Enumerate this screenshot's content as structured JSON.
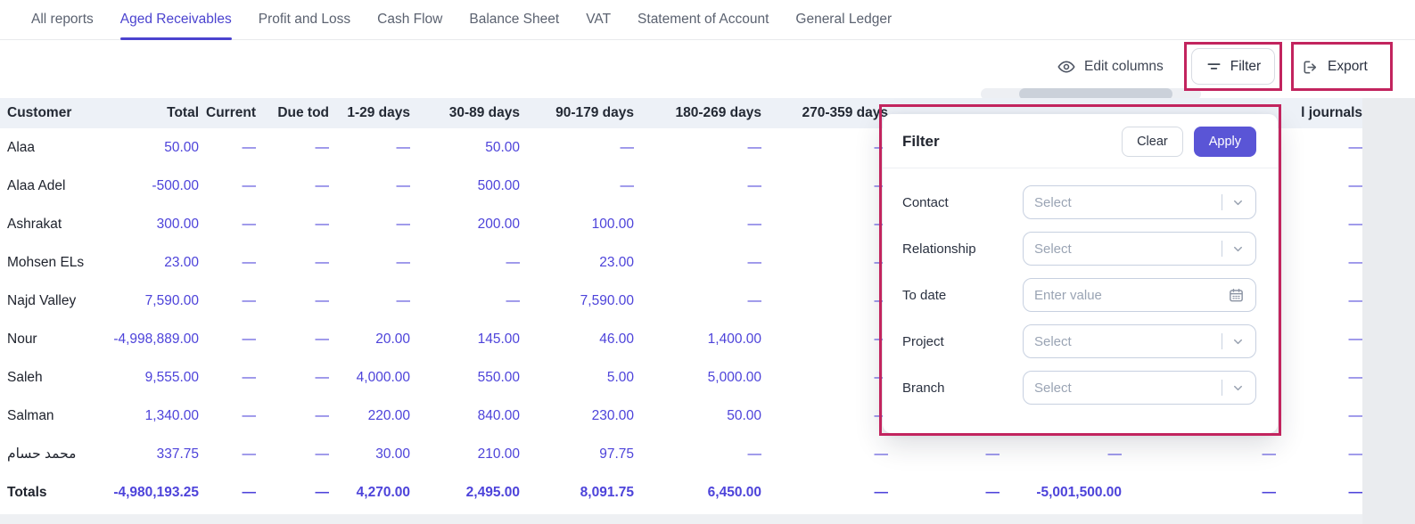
{
  "colors": {
    "accent": "#4b43cf",
    "number_link": "#4d43da",
    "annotation": "#c2245e",
    "apply_button": "#5a55d6",
    "table_header_bg": "#edf1f7"
  },
  "tabs": [
    {
      "label": "All reports",
      "active": false
    },
    {
      "label": "Aged Receivables",
      "active": true
    },
    {
      "label": "Profit and Loss",
      "active": false
    },
    {
      "label": "Cash Flow",
      "active": false
    },
    {
      "label": "Balance Sheet",
      "active": false
    },
    {
      "label": "VAT",
      "active": false
    },
    {
      "label": "Statement of Account",
      "active": false
    },
    {
      "label": "General Ledger",
      "active": false
    }
  ],
  "toolbar": {
    "edit_columns_label": "Edit columns",
    "filter_label": "Filter",
    "export_label": "Export"
  },
  "table": {
    "columns": [
      "Customer",
      "Total",
      "Current",
      "Due tod",
      "1-29 days",
      "30-89 days",
      "90-179 days",
      "180-269 days",
      "270-359 days",
      "",
      "",
      "",
      "l journals"
    ],
    "rows": [
      {
        "bold": false,
        "cells": [
          "Alaa",
          "50.00",
          "—",
          "—",
          "—",
          "50.00",
          "—",
          "—",
          "—",
          "",
          "",
          "",
          "—"
        ]
      },
      {
        "bold": false,
        "cells": [
          "Alaa Adel",
          "-500.00",
          "—",
          "—",
          "—",
          "500.00",
          "—",
          "—",
          "—",
          "",
          "",
          "",
          "—"
        ]
      },
      {
        "bold": false,
        "cells": [
          "Ashrakat",
          "300.00",
          "—",
          "—",
          "—",
          "200.00",
          "100.00",
          "—",
          "—",
          "",
          "",
          "",
          "—"
        ]
      },
      {
        "bold": false,
        "cells": [
          "Mohsen ELs",
          "23.00",
          "—",
          "—",
          "—",
          "—",
          "23.00",
          "—",
          "—",
          "",
          "",
          "",
          "—"
        ]
      },
      {
        "bold": false,
        "cells": [
          "Najd Valley",
          "7,590.00",
          "—",
          "—",
          "—",
          "—",
          "7,590.00",
          "—",
          "—",
          "",
          "",
          "",
          "—"
        ]
      },
      {
        "bold": false,
        "cells": [
          "Nour",
          "-4,998,889.00",
          "—",
          "—",
          "20.00",
          "145.00",
          "46.00",
          "1,400.00",
          "—",
          "",
          "",
          "",
          "—"
        ]
      },
      {
        "bold": false,
        "cells": [
          "Saleh",
          "9,555.00",
          "—",
          "—",
          "4,000.00",
          "550.00",
          "5.00",
          "5,000.00",
          "—",
          "",
          "",
          "",
          "—"
        ]
      },
      {
        "bold": false,
        "cells": [
          "Salman",
          "1,340.00",
          "—",
          "—",
          "220.00",
          "840.00",
          "230.00",
          "50.00",
          "—",
          "",
          "",
          "",
          "—"
        ]
      },
      {
        "bold": false,
        "cells": [
          "محمد حسام",
          "337.75",
          "—",
          "—",
          "30.00",
          "210.00",
          "97.75",
          "—",
          "—",
          "—",
          "—",
          "—",
          "—"
        ]
      },
      {
        "bold": true,
        "cells": [
          "Totals",
          "-4,980,193.25",
          "—",
          "—",
          "4,270.00",
          "2,495.00",
          "8,091.75",
          "6,450.00",
          "—",
          "—",
          "-5,001,500.00",
          "—",
          "—"
        ]
      }
    ]
  },
  "filter_panel": {
    "title": "Filter",
    "clear_label": "Clear",
    "apply_label": "Apply",
    "fields": [
      {
        "label": "Contact",
        "type": "select",
        "placeholder": "Select"
      },
      {
        "label": "Relationship",
        "type": "select",
        "placeholder": "Select"
      },
      {
        "label": "To date",
        "type": "date",
        "placeholder": "Enter value"
      },
      {
        "label": "Project",
        "type": "select",
        "placeholder": "Select"
      },
      {
        "label": "Branch",
        "type": "select",
        "placeholder": "Select"
      }
    ]
  }
}
